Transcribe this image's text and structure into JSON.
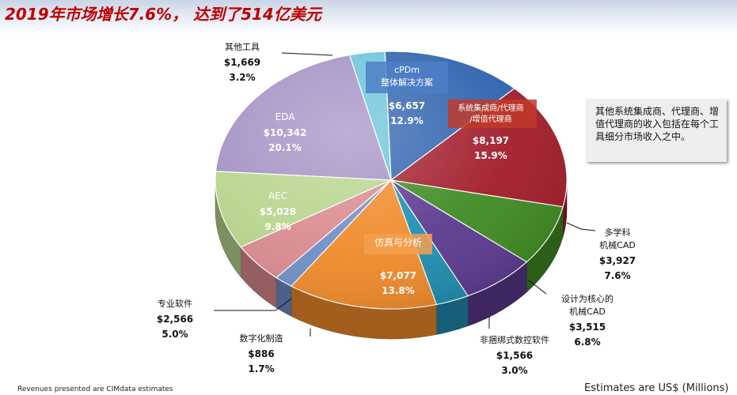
{
  "title": "2019年市场增长7.6%， 达到了514亿美元",
  "note": "其他系统集成商、代理商、增值代理商的收入包括在每个工具细分市场收入之中。",
  "footer_left": "Revenues presented are CIMdata estimates",
  "footer_right": "Estimates are US$ (Millions)",
  "chart_data": {
    "type": "pie",
    "title": "2019年市场增长7.6%， 达到了514亿美元",
    "unit": "US$ (Millions)",
    "slices": [
      {
        "label": "cPDm 整体解决方案",
        "label_lines": [
          "cPDm",
          "整体解决方案"
        ],
        "value_text": "$6,657",
        "value": 6657,
        "percent": "12.9%",
        "color": "#2e62ad"
      },
      {
        "label": "系统集成商/代理商/增值代理商",
        "label_lines": [
          "系统集成商/代理商",
          "/增值代理商"
        ],
        "value_text": "$8,197",
        "value": 8197,
        "percent": "15.9%",
        "color": "#a11c2a"
      },
      {
        "label": "多学科机械CAD",
        "label_lines": [
          "多学科",
          "机械CAD"
        ],
        "value_text": "$3,927",
        "value": 3927,
        "percent": "7.6%",
        "color": "#3f8a22"
      },
      {
        "label": "设计为核心的机械CAD",
        "label_lines": [
          "设计为核心的",
          "机械CAD"
        ],
        "value_text": "$3,515",
        "value": 3515,
        "percent": "6.8%",
        "color": "#5b3a8f"
      },
      {
        "label": "非捆绑式数控软件",
        "label_lines": [
          "非捆绑式数控软件"
        ],
        "value_text": "$1,566",
        "value": 1566,
        "percent": "3.0%",
        "color": "#1f8db0"
      },
      {
        "label": "仿真与分析",
        "label_lines": [
          "仿真与分析"
        ],
        "value_text": "$7,077",
        "value": 7077,
        "percent": "13.8%",
        "color": "#f08a2a"
      },
      {
        "label": "数字化制造",
        "label_lines": [
          "数字化制造"
        ],
        "value_text": "$886",
        "value": 886,
        "percent": "1.7%",
        "color": "#6f8fc8"
      },
      {
        "label": "专业软件",
        "label_lines": [
          "专业软件"
        ],
        "value_text": "$2,566",
        "value": 2566,
        "percent": "5.0%",
        "color": "#d98a8f"
      },
      {
        "label": "AEC",
        "label_lines": [
          "AEC"
        ],
        "value_text": "$5,028",
        "value": 5028,
        "percent": "9.8%",
        "color": "#b7d48c"
      },
      {
        "label": "EDA",
        "label_lines": [
          "EDA"
        ],
        "value_text": "$10,342",
        "value": 10342,
        "percent": "20.1%",
        "color": "#a390c4"
      },
      {
        "label": "其他工具",
        "label_lines": [
          "其他工具"
        ],
        "value_text": "$1,669",
        "value": 1669,
        "percent": "3.2%",
        "color": "#69c3d9"
      }
    ]
  }
}
